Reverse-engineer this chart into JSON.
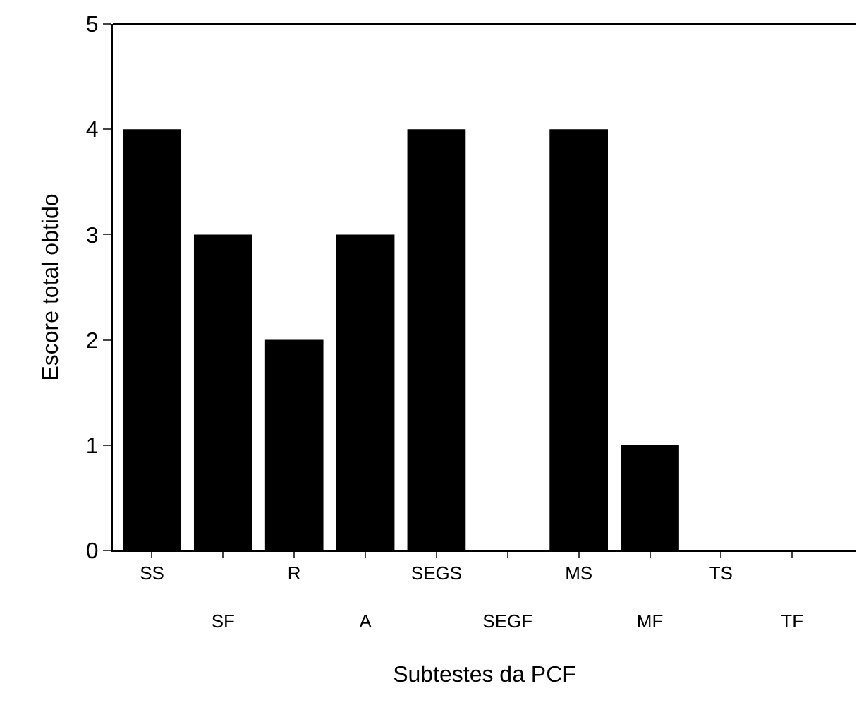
{
  "chart_data": {
    "type": "bar",
    "xlabel": "Subtestes da PCF",
    "ylabel": "Escore total obtido",
    "categories": [
      "SS",
      "SF",
      "R",
      "A",
      "SEGS",
      "SEGF",
      "MS",
      "MF",
      "TS",
      "TF"
    ],
    "values": [
      4,
      3,
      2,
      3,
      4,
      0,
      4,
      1,
      0,
      0
    ],
    "color": "#000000",
    "ylim": [
      0,
      5
    ],
    "yticks": [
      0,
      1,
      2,
      3,
      4,
      5
    ]
  }
}
